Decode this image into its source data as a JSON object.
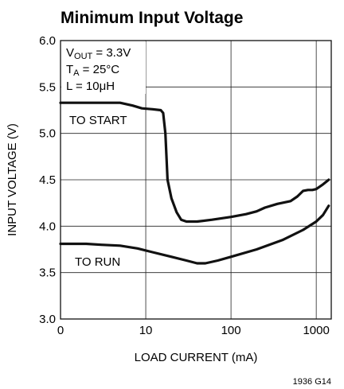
{
  "chart_data": {
    "type": "line",
    "title": "Minimum Input Voltage",
    "xlabel": "LOAD CURRENT (mA)",
    "ylabel": "INPUT VOLTAGE (V)",
    "x_scale": "log",
    "xlim": [
      1,
      1500
    ],
    "ylim": [
      3.0,
      6.0
    ],
    "grid": true,
    "x_ticks": [
      {
        "value": 1,
        "label": "0"
      },
      {
        "value": 10,
        "label": "10"
      },
      {
        "value": 100,
        "label": "100"
      },
      {
        "value": 1000,
        "label": "1000"
      }
    ],
    "y_ticks": [
      {
        "value": 3.0,
        "label": "3.0"
      },
      {
        "value": 3.5,
        "label": "3.5"
      },
      {
        "value": 4.0,
        "label": "4.0"
      },
      {
        "value": 4.5,
        "label": "4.5"
      },
      {
        "value": 5.0,
        "label": "5.0"
      },
      {
        "value": 5.5,
        "label": "5.5"
      },
      {
        "value": 6.0,
        "label": "6.0"
      }
    ],
    "conditions": {
      "vout": {
        "main": "V",
        "sub": "OUT",
        "rest": " = 3.3V"
      },
      "ta": {
        "main": "T",
        "sub": "A",
        "rest": " = 25°C"
      },
      "l": "L = 10μH"
    },
    "series": [
      {
        "label": "TO START",
        "points": [
          [
            1,
            5.33
          ],
          [
            2,
            5.33
          ],
          [
            4,
            5.33
          ],
          [
            5,
            5.33
          ],
          [
            7,
            5.3
          ],
          [
            9,
            5.27
          ],
          [
            12,
            5.26
          ],
          [
            15,
            5.25
          ],
          [
            16,
            5.22
          ],
          [
            17,
            5.0
          ],
          [
            18,
            4.5
          ],
          [
            20,
            4.3
          ],
          [
            23,
            4.15
          ],
          [
            26,
            4.07
          ],
          [
            30,
            4.05
          ],
          [
            40,
            4.05
          ],
          [
            60,
            4.07
          ],
          [
            100,
            4.1
          ],
          [
            150,
            4.13
          ],
          [
            200,
            4.16
          ],
          [
            250,
            4.2
          ],
          [
            350,
            4.24
          ],
          [
            500,
            4.27
          ],
          [
            600,
            4.32
          ],
          [
            700,
            4.38
          ],
          [
            800,
            4.39
          ],
          [
            900,
            4.39
          ],
          [
            1000,
            4.4
          ],
          [
            1200,
            4.45
          ],
          [
            1400,
            4.5
          ]
        ]
      },
      {
        "label": "TO RUN",
        "points": [
          [
            1,
            3.81
          ],
          [
            2,
            3.81
          ],
          [
            3,
            3.8
          ],
          [
            5,
            3.79
          ],
          [
            8,
            3.76
          ],
          [
            12,
            3.72
          ],
          [
            20,
            3.67
          ],
          [
            30,
            3.63
          ],
          [
            40,
            3.6
          ],
          [
            50,
            3.6
          ],
          [
            70,
            3.63
          ],
          [
            100,
            3.67
          ],
          [
            200,
            3.75
          ],
          [
            400,
            3.85
          ],
          [
            700,
            3.96
          ],
          [
            1000,
            4.05
          ],
          [
            1200,
            4.12
          ],
          [
            1400,
            4.22
          ]
        ]
      }
    ]
  },
  "figure_id": "1936 G14"
}
